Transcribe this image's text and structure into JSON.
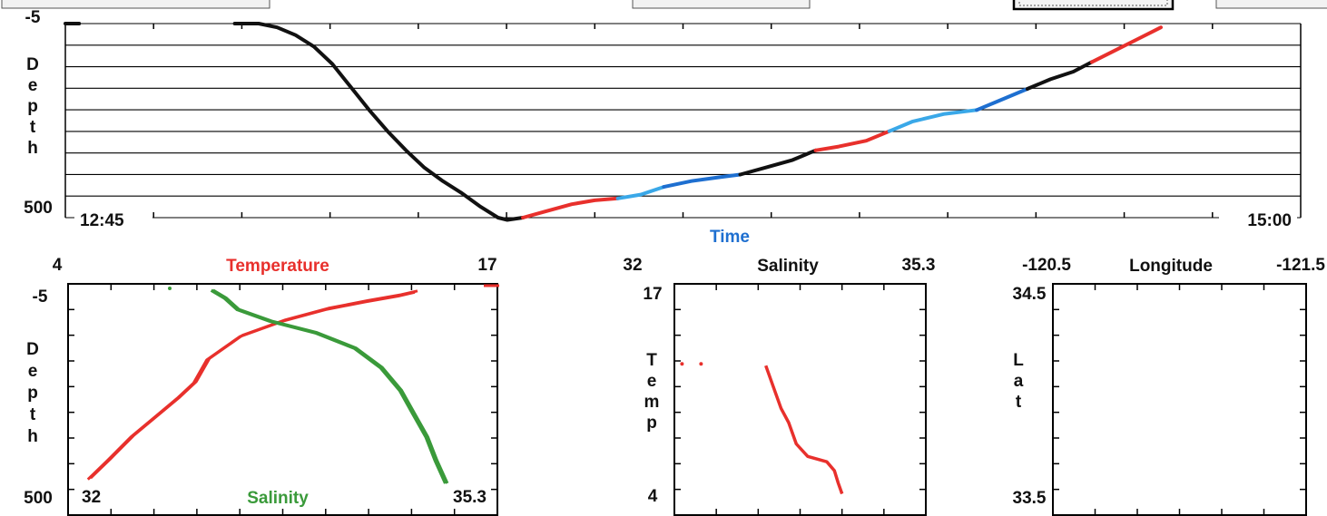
{
  "toolbar": {
    "buttons": [
      "",
      "",
      "",
      "",
      ""
    ]
  },
  "colors": {
    "temperature": "#e8302c",
    "salinity": "#3a9a3a",
    "dark": "#111111",
    "blue": "#1e6fd0",
    "light_blue": "#3aa8e8",
    "red": "#e8302c",
    "time_label": "#1e6fd0"
  },
  "chart_data": [
    {
      "type": "line",
      "id": "depth-time",
      "title": "",
      "xlabel": "Time",
      "ylabel": "Depth",
      "x_start_label": "12:45",
      "x_end_label": "15:00",
      "y_top_label": "-5",
      "y_bottom_label": "500",
      "xlim": [
        0,
        1
      ],
      "ylim": [
        -5,
        500
      ],
      "y_inverted": true,
      "grid_lines": 9,
      "grid": true,
      "series": [
        {
          "color": "#111111",
          "x": [
            0.0,
            0.015
          ],
          "y": [
            -5,
            -5
          ]
        },
        {
          "color": "#111111",
          "x": [
            0.184,
            0.21,
            0.23,
            0.25,
            0.27,
            0.29,
            0.31,
            0.33,
            0.35,
            0.37,
            0.39,
            0.41,
            0.43,
            0.45,
            0.47,
            0.48,
            0.497
          ],
          "y": [
            -5,
            -5,
            5,
            25,
            55,
            100,
            160,
            220,
            275,
            325,
            370,
            405,
            435,
            470,
            500,
            506,
            500
          ]
        },
        {
          "color": "#e8302c",
          "x": [
            0.497,
            0.52,
            0.55,
            0.575,
            0.6
          ],
          "y": [
            500,
            485,
            465,
            455,
            450
          ]
        },
        {
          "color": "#3aa8e8",
          "x": [
            0.6,
            0.625,
            0.65
          ],
          "y": [
            450,
            440,
            420
          ]
        },
        {
          "color": "#1e6fd0",
          "x": [
            0.65,
            0.68,
            0.71,
            0.733
          ],
          "y": [
            420,
            405,
            395,
            388
          ]
        },
        {
          "color": "#111111",
          "x": [
            0.733,
            0.76,
            0.79,
            0.815
          ],
          "y": [
            388,
            370,
            350,
            325
          ]
        },
        {
          "color": "#e8302c",
          "x": [
            0.815,
            0.84,
            0.87,
            0.895
          ],
          "y": [
            325,
            315,
            300,
            275
          ]
        },
        {
          "color": "#3aa8e8",
          "x": [
            0.895,
            0.92,
            0.955,
            0.99
          ],
          "y": [
            275,
            250,
            230,
            220
          ]
        },
        {
          "color": "#1e6fd0",
          "x": [
            0.99,
            1.01,
            1.03,
            1.045
          ],
          "y": [
            220,
            200,
            180,
            165
          ]
        },
        {
          "color": "#111111",
          "x": [
            1.045,
            1.07,
            1.095,
            1.115
          ],
          "y": [
            165,
            140,
            120,
            95
          ]
        },
        {
          "color": "#e8302c",
          "x": [
            1.115,
            1.14,
            1.165,
            1.19
          ],
          "y": [
            95,
            65,
            35,
            5
          ]
        }
      ]
    },
    {
      "type": "line",
      "id": "temp-sal-profile",
      "title": "Temperature",
      "x2label": "Salinity",
      "ylabel": "Depth",
      "x_top_min_label": "4",
      "x_top_max_label": "17",
      "x_bottom_min_label": "32",
      "x_bottom_max_label": "35.3",
      "y_top_label": "-5",
      "y_bottom_label": "500",
      "xlim_temperature": [
        4,
        17
      ],
      "xlim_salinity": [
        32,
        35.3
      ],
      "ylim": [
        -5,
        500
      ],
      "y_inverted": true,
      "series": [
        {
          "name": "Temperature",
          "color": "#e8302c",
          "x": [
            4.6,
            5.2,
            5.9,
            6.6,
            7.3,
            7.8,
            8.2,
            9.2,
            10.5,
            11.8,
            13.0,
            14.0,
            14.5
          ],
          "y": [
            490,
            440,
            380,
            330,
            280,
            240,
            180,
            120,
            80,
            50,
            30,
            15,
            5
          ]
        },
        {
          "name": "Salinity",
          "color": "#3a9a3a",
          "x": [
            33.1,
            33.2,
            33.3,
            33.55,
            33.9,
            34.2,
            34.4,
            34.55,
            34.65,
            34.75,
            34.82,
            34.9
          ],
          "y": [
            0,
            20,
            50,
            80,
            110,
            150,
            200,
            260,
            320,
            380,
            440,
            500
          ]
        }
      ]
    },
    {
      "type": "scatter",
      "id": "ts-diagram",
      "title": "Salinity",
      "ylabel": "Temp",
      "x_min_label": "32",
      "x_max_label": "35.3",
      "y_top_label": "17",
      "y_bottom_label": "4",
      "xlim": [
        32,
        35.3
      ],
      "ylim": [
        4,
        17
      ],
      "series": [
        {
          "color": "#e8302c",
          "x": [
            32.1,
            32.35,
            33.2,
            33.3,
            33.4,
            33.5,
            33.6,
            33.75,
            34.0,
            34.1,
            34.15,
            34.2
          ],
          "y": [
            12.5,
            12.5,
            12.4,
            11.2,
            10.0,
            9.2,
            8.0,
            7.3,
            7.0,
            6.5,
            5.8,
            5.2
          ]
        }
      ]
    },
    {
      "type": "scatter",
      "id": "lat-lon",
      "title": "Longitude",
      "ylabel": "Lat",
      "x_left_label": "-120.5",
      "x_right_label": "-121.5",
      "y_top_label": "34.5",
      "y_bottom_label": "33.5",
      "xlim": [
        -120.5,
        -121.5
      ],
      "ylim": [
        33.5,
        34.5
      ],
      "series": []
    }
  ]
}
